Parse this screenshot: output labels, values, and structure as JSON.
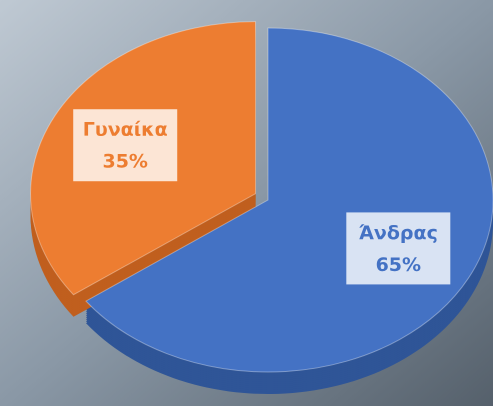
{
  "chart_data": {
    "type": "pie",
    "categories": [
      "Άνδρας",
      "Γυναίκα"
    ],
    "values": [
      65,
      35
    ],
    "value_labels": [
      "65%",
      "35%"
    ],
    "colors": [
      "#4472c4",
      "#ed7d31"
    ],
    "side_colors": [
      "#2f5597",
      "#c05f1e"
    ]
  }
}
